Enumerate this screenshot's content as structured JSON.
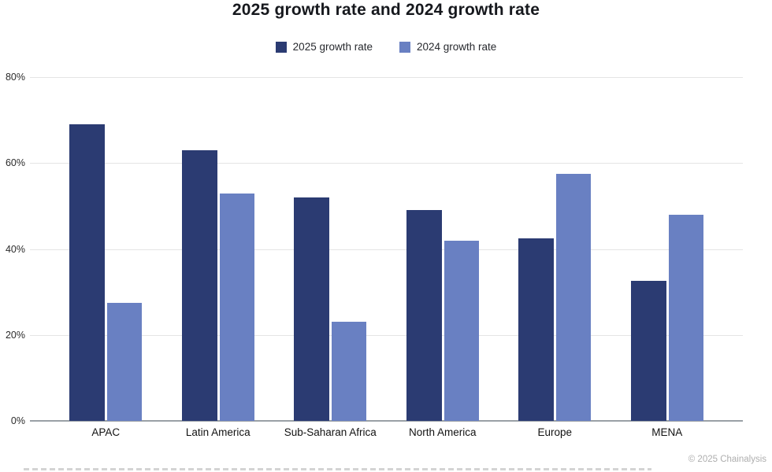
{
  "title": "2025 growth rate and 2024 growth rate",
  "footer": {
    "copyright": "© 2025 Chainalysis"
  },
  "chart_data": {
    "type": "bar",
    "title": "2025 growth rate and 2024 growth rate",
    "categories": [
      "APAC",
      "Latin America",
      "Sub-Saharan Africa",
      "North America",
      "Europe",
      "MENA"
    ],
    "series": [
      {
        "name": "2025 growth rate",
        "color": "#2B3B72",
        "values": [
          69,
          63,
          52,
          49,
          42.5,
          32.5
        ]
      },
      {
        "name": "2024 growth rate",
        "color": "#6980C2",
        "values": [
          27.5,
          53,
          23,
          42,
          57.5,
          48
        ]
      }
    ],
    "unit": "%",
    "ylim": [
      0,
      80
    ],
    "y_ticks": [
      {
        "value": 0,
        "label": "0%"
      },
      {
        "value": 20,
        "label": "20%"
      },
      {
        "value": 40,
        "label": "40%"
      },
      {
        "value": 60,
        "label": "60%"
      },
      {
        "value": 80,
        "label": "80%"
      }
    ],
    "grid": true,
    "legend_position": "top"
  }
}
